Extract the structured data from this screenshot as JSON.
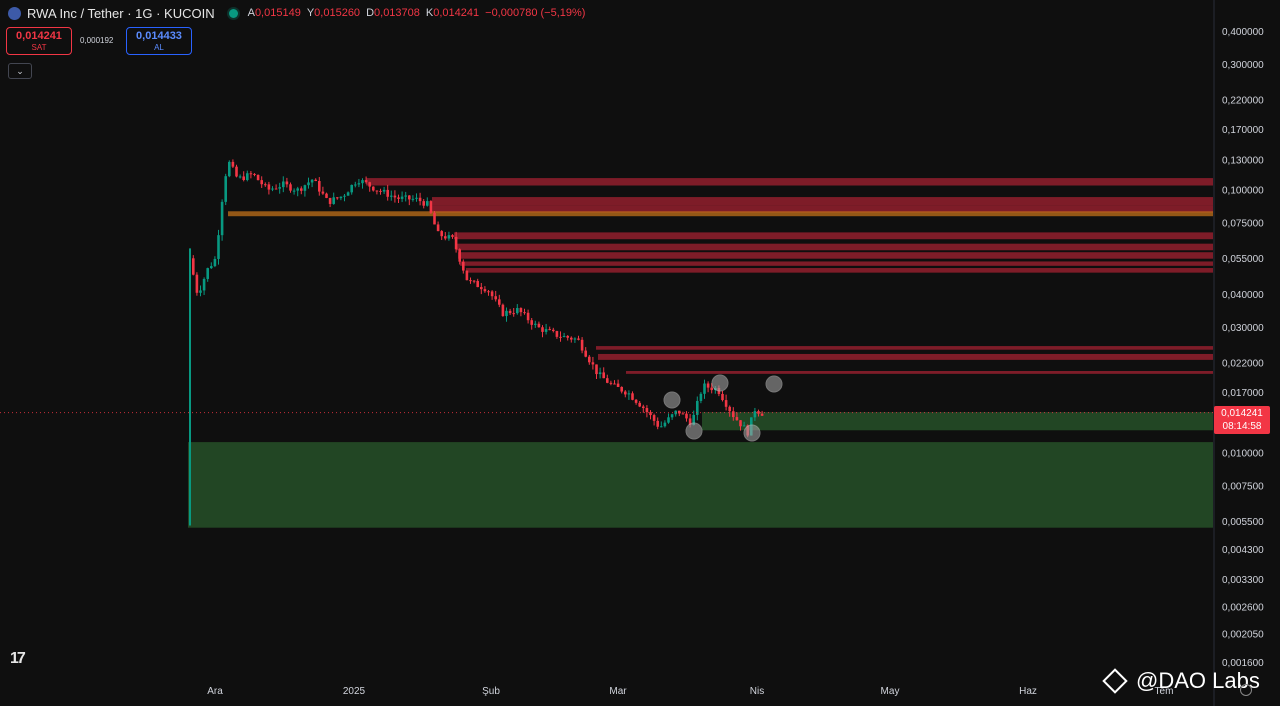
{
  "header": {
    "symbol": "RWA Inc / Tether · 1G · KUCOIN",
    "ohlc": [
      {
        "k": "A",
        "v": "0,015149"
      },
      {
        "k": "Y",
        "v": "0,015260"
      },
      {
        "k": "D",
        "v": "0,013708"
      },
      {
        "k": "K",
        "v": "0,014241"
      }
    ],
    "change": "−0,000780 (−5,19%)"
  },
  "trade": {
    "sell_price": "0,014241",
    "sell_label": "SAT",
    "spread": "0,000192",
    "buy_price": "0,014433",
    "buy_label": "AL"
  },
  "price_tag": {
    "price": "0,014241",
    "countdown": "08:14:58"
  },
  "watermark": "@DAO Labs",
  "colors": {
    "up": "#089981",
    "down": "#f23645",
    "resistance": "#8b1e2b",
    "support": "#244a26",
    "orange": "#c0701a"
  },
  "chart_data": {
    "type": "candlestick",
    "y_scale": "log",
    "y_ticks": [
      "0,400000",
      "0,300000",
      "0,220000",
      "0,170000",
      "0,130000",
      "0,100000",
      "0,075000",
      "0,055000",
      "0,040000",
      "0,030000",
      "0,022000",
      "0,017000",
      "0,010000",
      "0,007500",
      "0,005500",
      "0,004300",
      "0,003300",
      "0,002600",
      "0,002050",
      "0,001600"
    ],
    "x_ticks": [
      "Ara",
      "2025",
      "Şub",
      "Mar",
      "Nis",
      "May",
      "Haz",
      "Tem"
    ],
    "last_price": 0.014241,
    "support_zones": [
      [
        0.0052,
        0.011
      ],
      [
        0.0122,
        0.0143
      ]
    ],
    "resistance_zones": [
      [
        0.02,
        0.0205
      ],
      [
        0.0226,
        0.0238
      ],
      [
        0.0247,
        0.0255
      ],
      [
        0.0485,
        0.0505
      ],
      [
        0.0515,
        0.0535
      ],
      [
        0.0548,
        0.058
      ],
      [
        0.059,
        0.0625
      ],
      [
        0.065,
        0.069
      ],
      [
        0.082,
        0.087
      ],
      [
        0.087,
        0.094
      ],
      [
        0.104,
        0.111
      ]
    ],
    "orange_zone": [
      0.0795,
      0.083
    ]
  }
}
